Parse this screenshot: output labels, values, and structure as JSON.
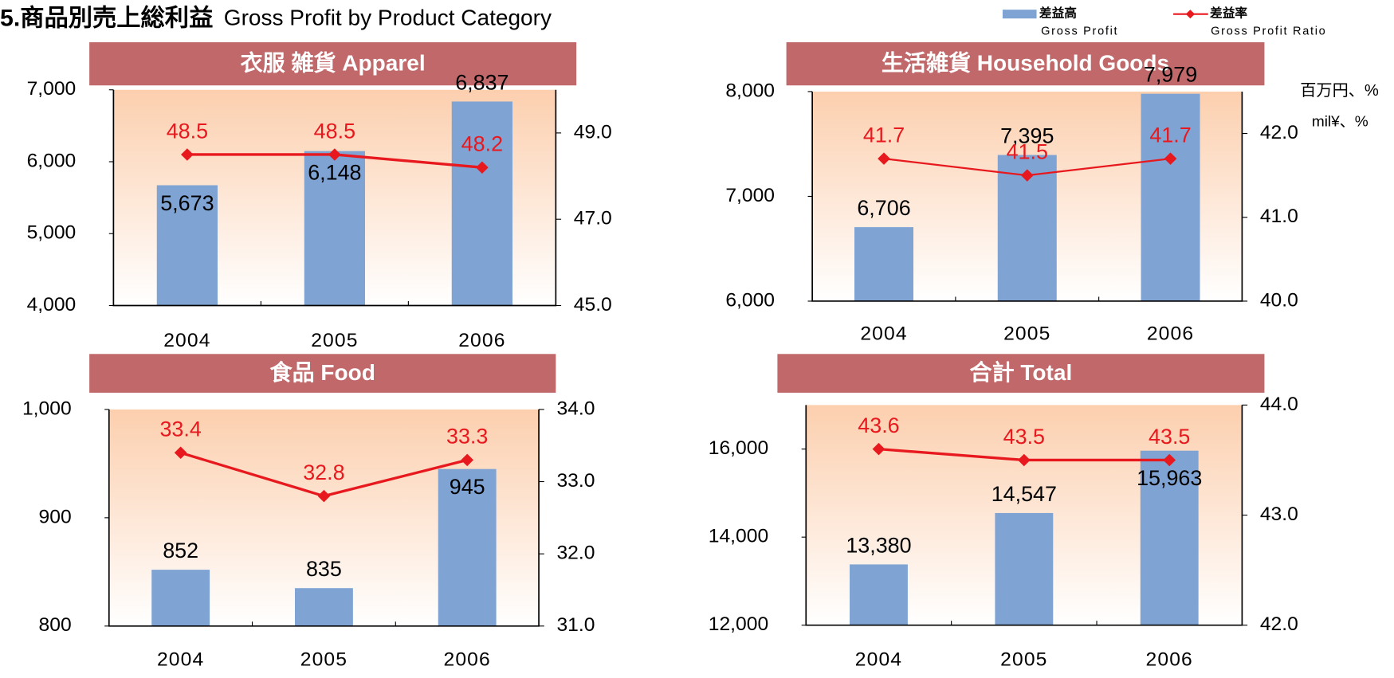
{
  "title": "5.商品別売上総利益",
  "subtitle": "Gross Profit by Product Category",
  "unit": [
    "百万円、%",
    "mil¥、%"
  ],
  "chart_data": [
    {
      "type": "bar",
      "title": "衣服 雑貨  Apparel",
      "categories": [
        "2004",
        "2005",
        "2006"
      ],
      "series": [
        {
          "name": "差益高",
          "name_en": "Gross Profit",
          "type": "bar",
          "color": "#7fa3d3",
          "values": [
            5673,
            6148,
            6837
          ],
          "value_labels": [
            "5,673",
            "6,148",
            "6,837"
          ]
        },
        {
          "name": "差益率",
          "name_en": "Gross Profit Ratio",
          "type": "line",
          "axis": "y2",
          "color": "#e8191e",
          "values": [
            48.5,
            48.5,
            48.2
          ]
        }
      ],
      "ylim": [
        4000,
        7000
      ],
      "yticks": [
        {
          "value": 4000,
          "label": "4,000"
        },
        {
          "value": 5000,
          "label": "5,000"
        },
        {
          "value": 6000,
          "label": "6,000"
        },
        {
          "value": 7000,
          "label": "7,000"
        }
      ],
      "y2lim": [
        45,
        50
      ],
      "y2ticks": [
        {
          "value": 45,
          "label": "45.0"
        },
        {
          "value": 47,
          "label": "47.0"
        },
        {
          "value": 49,
          "label": "49.0"
        }
      ],
      "grid": false
    },
    {
      "type": "bar",
      "title": "生活雑貨  Household Goods",
      "categories": [
        "2004",
        "2005",
        "2006"
      ],
      "series": [
        {
          "type": "bar",
          "color": "#7fa3d3",
          "values": [
            6706,
            7395,
            7979
          ],
          "value_labels": [
            "6,706",
            "7,395",
            "7,979"
          ]
        },
        {
          "type": "line",
          "axis": "y2",
          "color": "#e8191e",
          "values": [
            41.7,
            41.5,
            41.7
          ]
        }
      ],
      "ylim": [
        6000,
        8000
      ],
      "yticks": [
        {
          "value": 6000,
          "label": "6,000"
        },
        {
          "value": 7000,
          "label": "7,000"
        },
        {
          "value": 8000,
          "label": "8,000"
        }
      ],
      "y2lim": [
        40,
        42.5
      ],
      "y2ticks": [
        {
          "value": 40,
          "label": "40.0"
        },
        {
          "value": 41,
          "label": "41.0"
        },
        {
          "value": 42,
          "label": "42.0"
        }
      ],
      "grid": false
    },
    {
      "type": "bar",
      "title": "食品  Food",
      "categories": [
        "2004",
        "2005",
        "2006"
      ],
      "series": [
        {
          "type": "bar",
          "color": "#7fa3d3",
          "values": [
            852,
            835,
            945
          ]
        },
        {
          "type": "line",
          "axis": "y2",
          "color": "#e8191e",
          "values": [
            33.4,
            32.8,
            33.3
          ]
        }
      ],
      "ylim": [
        800,
        1000
      ],
      "yticks": [
        800,
        900,
        {
          "value": 1000,
          "label": "1,000"
        }
      ],
      "y2lim": [
        31,
        34
      ],
      "y2ticks": [
        {
          "value": 31,
          "label": "31.0"
        },
        {
          "value": 32,
          "label": "32.0"
        },
        {
          "value": 33,
          "label": "33.0"
        },
        {
          "value": 34,
          "label": "34.0"
        }
      ],
      "grid": false
    },
    {
      "type": "bar",
      "title": "合計   Total",
      "categories": [
        "2004",
        "2005",
        "2006"
      ],
      "series": [
        {
          "type": "bar",
          "color": "#7fa3d3",
          "values": [
            13380,
            14547,
            15963
          ],
          "value_labels": [
            "13,380",
            "14,547",
            "15,963"
          ]
        },
        {
          "type": "line",
          "axis": "y2",
          "color": "#e8191e",
          "values": [
            43.6,
            43.5,
            43.5
          ]
        }
      ],
      "ylim": [
        12000,
        17000
      ],
      "yticks": [
        {
          "value": 12000,
          "label": "12,000"
        },
        {
          "value": 14000,
          "label": "14,000"
        },
        {
          "value": 16000,
          "label": "16,000"
        }
      ],
      "y2lim": [
        42,
        44
      ],
      "y2ticks": [
        {
          "value": 42,
          "label": "42.0"
        },
        {
          "value": 43,
          "label": "43.0"
        },
        {
          "value": 44,
          "label": "44.0"
        }
      ],
      "grid": false
    }
  ]
}
